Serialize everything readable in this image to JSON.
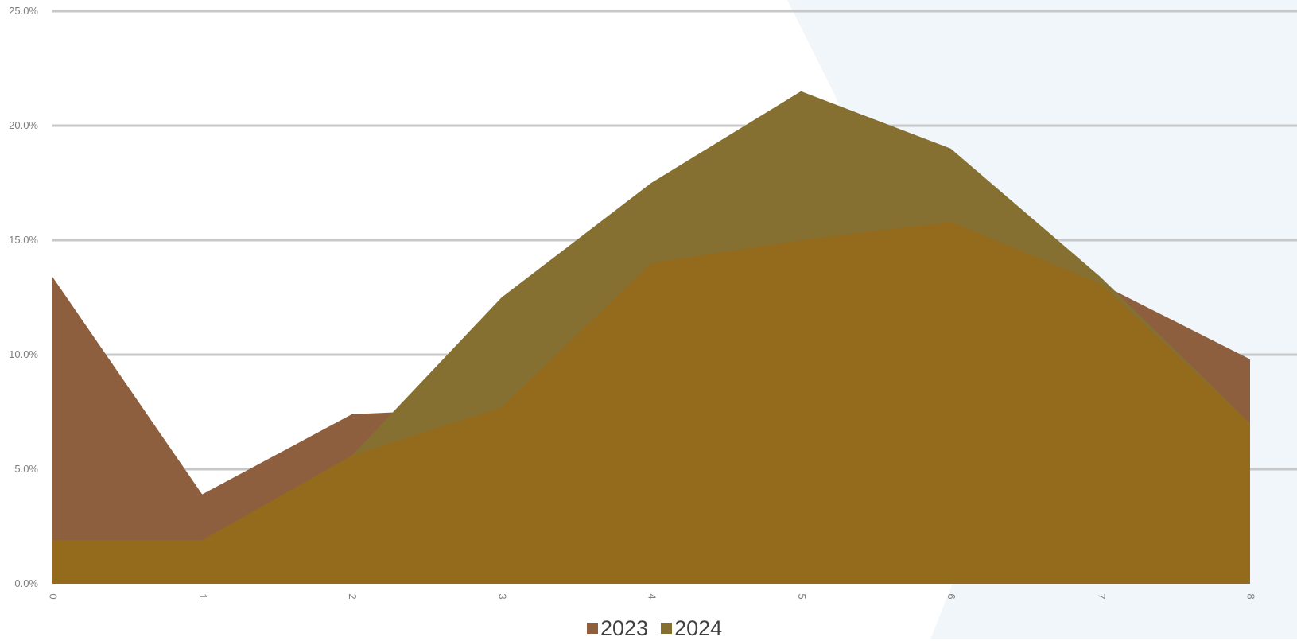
{
  "chart_data": {
    "type": "area",
    "x": [
      "0",
      "1",
      "2",
      "3",
      "4",
      "5",
      "6",
      "7",
      "8"
    ],
    "series": [
      {
        "name": "2023",
        "values": [
          13.4,
          3.9,
          7.4,
          7.7,
          14.0,
          15.0,
          15.8,
          13.1,
          9.8
        ],
        "color": "#8e5f3e"
      },
      {
        "name": "2024",
        "values": [
          1.9,
          1.9,
          5.6,
          12.5,
          17.5,
          21.5,
          19.0,
          13.4,
          7.0
        ],
        "color": "#857032"
      }
    ],
    "overlap_color": "#946a1d",
    "ylim": [
      0,
      25
    ],
    "yticks": [
      0,
      5,
      10,
      15,
      20,
      25
    ],
    "ytick_labels": [
      "0.0%",
      "5.0%",
      "10.0%",
      "15.0%",
      "20.0%",
      "25.0%"
    ],
    "grid": true,
    "legend_position": "bottom",
    "title": "",
    "xlabel": "",
    "ylabel": ""
  }
}
